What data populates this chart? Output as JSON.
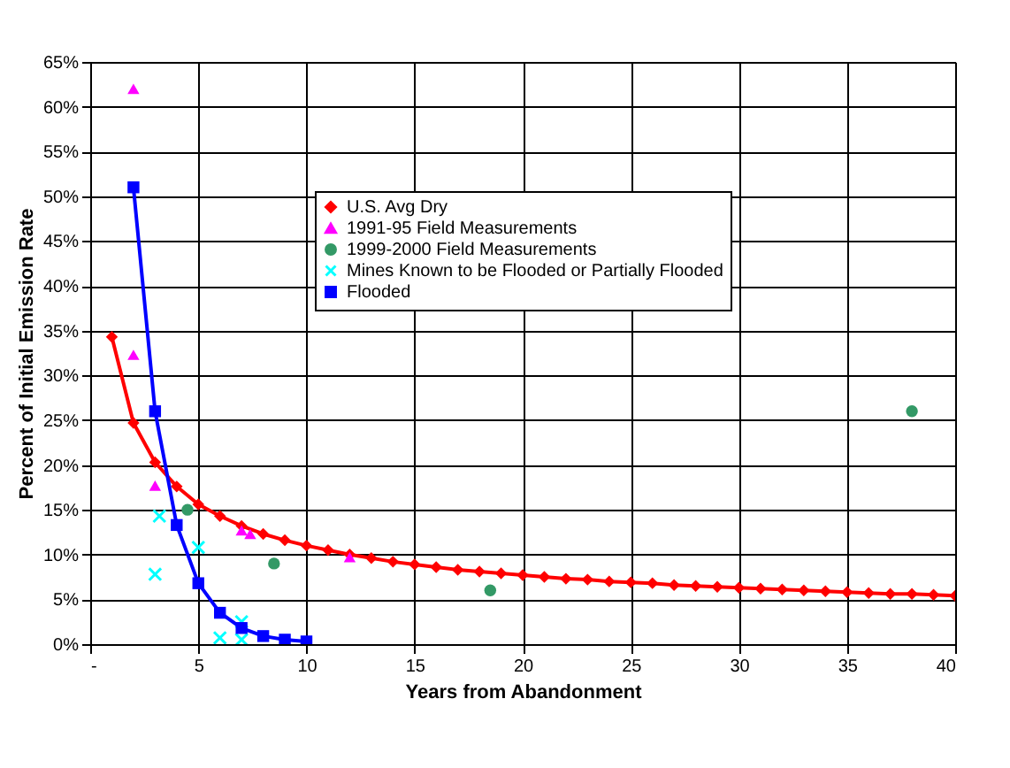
{
  "chart_data": {
    "type": "line",
    "xlabel": "Years from Abandonment",
    "ylabel": "Percent of Initial Emission Rate",
    "xlim": [
      0,
      40
    ],
    "xticks": [
      {
        "value": 0,
        "label": "-"
      },
      5,
      10,
      15,
      20,
      25,
      30,
      35,
      40
    ],
    "ylim": [
      0,
      65
    ],
    "yticks": [
      {
        "value": 0,
        "label": "0%"
      },
      {
        "value": 5,
        "label": "5%"
      },
      {
        "value": 10,
        "label": "10%"
      },
      {
        "value": 15,
        "label": "15%"
      },
      {
        "value": 20,
        "label": "20%"
      },
      {
        "value": 25,
        "label": "25%"
      },
      {
        "value": 30,
        "label": "30%"
      },
      {
        "value": 35,
        "label": "35%"
      },
      {
        "value": 40,
        "label": "40%"
      },
      {
        "value": 45,
        "label": "45%"
      },
      {
        "value": 50,
        "label": "50%"
      },
      {
        "value": 55,
        "label": "55%"
      },
      {
        "value": 60,
        "label": "60%"
      },
      {
        "value": 65,
        "label": "65%"
      }
    ],
    "grid": true,
    "legend": "top right",
    "series": [
      {
        "name": "U.S. Avg Dry",
        "marker": "diamond",
        "color": "#ff0000",
        "x": [
          1,
          2,
          3,
          4,
          5,
          6,
          7,
          8,
          9,
          10,
          11,
          12,
          13,
          14,
          15,
          16,
          17,
          18,
          19,
          20,
          21,
          22,
          23,
          24,
          25,
          26,
          27,
          28,
          29,
          30,
          31,
          32,
          33,
          34,
          35,
          36,
          37,
          38,
          39,
          40
        ],
        "values": [
          34.3,
          24.7,
          20.3,
          17.6,
          15.6,
          14.3,
          13.2,
          12.3,
          11.6,
          11.0,
          10.5,
          10.0,
          9.6,
          9.2,
          8.9,
          8.6,
          8.3,
          8.1,
          7.9,
          7.7,
          7.5,
          7.3,
          7.2,
          7.0,
          6.9,
          6.8,
          6.6,
          6.5,
          6.4,
          6.3,
          6.2,
          6.1,
          6.0,
          5.9,
          5.8,
          5.7,
          5.6,
          5.6,
          5.5,
          5.4
        ]
      },
      {
        "name": "1991-95 Field Measurements",
        "type": "scatter",
        "marker": "triangle",
        "color": "#ff00ff",
        "x": [
          2,
          2,
          3,
          7,
          7.4,
          12
        ],
        "values": [
          62,
          32.3,
          17.7,
          12.7,
          12.3,
          9.7
        ]
      },
      {
        "name": "1999-2000 Field Measurements",
        "type": "scatter",
        "marker": "circle",
        "color": "#339966",
        "x": [
          4.5,
          8.5,
          18.5,
          38
        ],
        "values": [
          15,
          9,
          6,
          26
        ]
      },
      {
        "name": "Mines Known to be Flooded or Partially Flooded",
        "type": "scatter",
        "marker": "cross",
        "color": "#00ffff",
        "x": [
          3.2,
          3,
          5,
          6,
          7,
          7
        ],
        "values": [
          14.3,
          7.8,
          10.8,
          0.7,
          2.5,
          0.5
        ]
      },
      {
        "name": "Flooded",
        "marker": "square",
        "color": "#0000ff",
        "x": [
          2,
          3,
          4,
          5,
          6,
          7,
          8,
          9,
          10
        ],
        "values": [
          51,
          26,
          13.3,
          6.8,
          3.5,
          1.8,
          0.9,
          0.5,
          0.3
        ]
      }
    ]
  }
}
